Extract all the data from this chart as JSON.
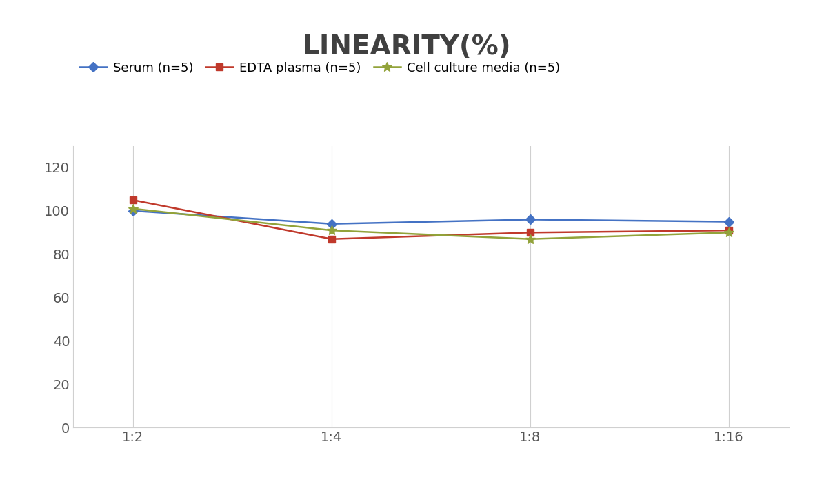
{
  "title": "LINEARITY(%)",
  "title_fontsize": 28,
  "title_fontweight": "bold",
  "x_labels": [
    "1:2",
    "1:4",
    "1:8",
    "1:16"
  ],
  "x_values": [
    0,
    1,
    2,
    3
  ],
  "series": [
    {
      "label": "Serum (n=5)",
      "values": [
        100.0,
        94.0,
        96.0,
        95.0
      ],
      "color": "#4472C4",
      "marker": "D",
      "marker_size": 7,
      "linewidth": 1.8
    },
    {
      "label": "EDTA plasma (n=5)",
      "values": [
        105.0,
        87.0,
        90.0,
        91.0
      ],
      "color": "#C0392B",
      "marker": "s",
      "marker_size": 7,
      "linewidth": 1.8
    },
    {
      "label": "Cell culture media (n=5)",
      "values": [
        101.0,
        91.0,
        87.0,
        90.0
      ],
      "color": "#92A33A",
      "marker": "*",
      "marker_size": 10,
      "linewidth": 1.8
    }
  ],
  "ylim": [
    0,
    130
  ],
  "yticks": [
    0,
    20,
    40,
    60,
    80,
    100,
    120
  ],
  "grid_color": "#D0D0D0",
  "background_color": "#FFFFFF",
  "legend_fontsize": 13,
  "tick_fontsize": 14,
  "title_color": "#404040"
}
